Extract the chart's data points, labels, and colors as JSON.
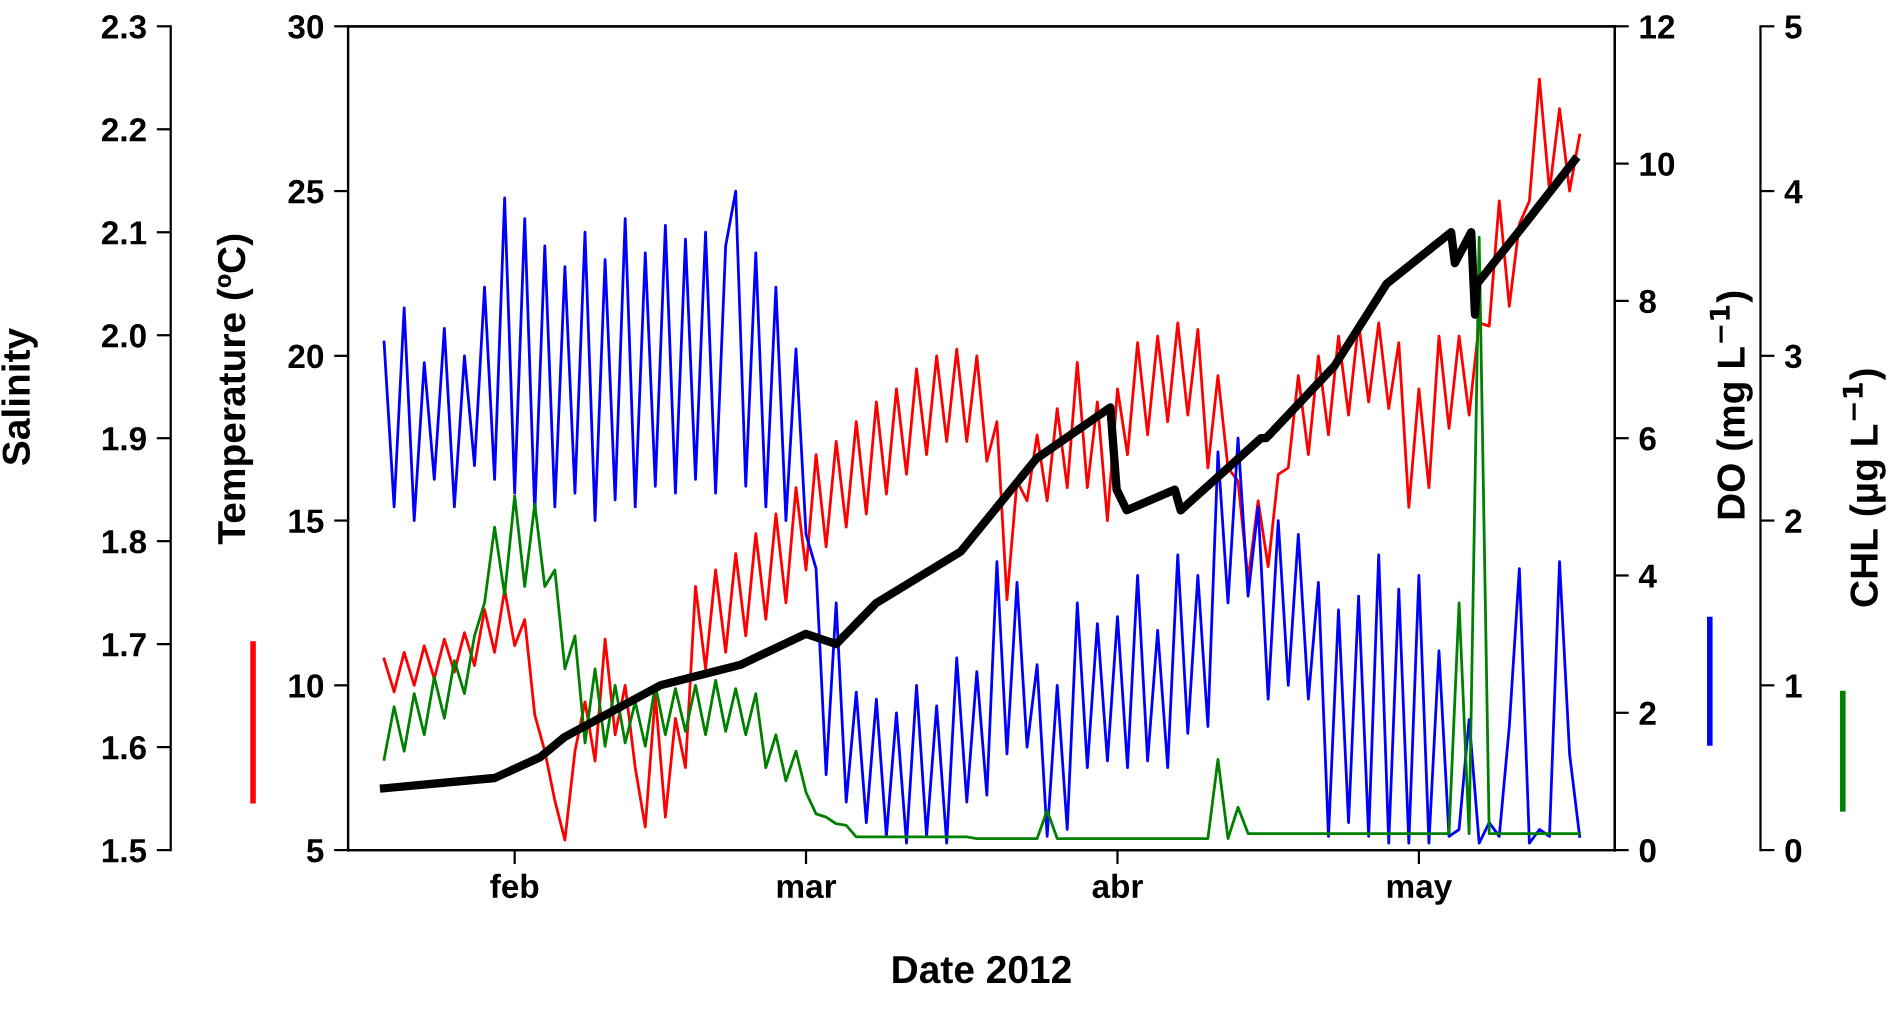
{
  "chart_data": [
    {
      "type": "line",
      "xlabel": "Date 2012",
      "ylabel": "Temperature (ºC)",
      "y2label": "DO (mg L$^{−1}$)",
      "y3label": "CHL (µg L$^{−1}$)",
      "x": [
        "2012-01-19",
        "2012-01-20",
        "2012-01-21",
        "2012-01-22",
        "2012-01-23",
        "2012-01-24",
        "2012-01-25",
        "2012-01-26",
        "2012-01-27",
        "2012-01-28",
        "2012-01-29",
        "2012-01-30",
        "2012-01-31",
        "2012-02-01",
        "2012-02-02",
        "2012-02-03",
        "2012-02-04",
        "2012-02-05",
        "2012-02-06",
        "2012-02-07",
        "2012-02-08",
        "2012-02-09",
        "2012-02-10",
        "2012-02-11",
        "2012-02-12",
        "2012-02-13",
        "2012-02-14",
        "2012-02-15",
        "2012-02-16",
        "2012-02-17",
        "2012-02-18",
        "2012-02-19",
        "2012-02-20",
        "2012-02-21",
        "2012-02-22",
        "2012-02-23",
        "2012-02-24",
        "2012-02-25",
        "2012-02-26",
        "2012-02-27",
        "2012-02-28",
        "2012-02-29",
        "2012-03-01",
        "2012-03-02",
        "2012-03-03",
        "2012-03-04",
        "2012-03-05",
        "2012-03-06",
        "2012-03-07",
        "2012-03-08",
        "2012-03-09",
        "2012-03-10",
        "2012-03-11",
        "2012-03-12",
        "2012-03-13",
        "2012-03-14",
        "2012-03-15",
        "2012-03-16",
        "2012-03-17",
        "2012-03-18",
        "2012-03-19",
        "2012-03-20",
        "2012-03-21",
        "2012-03-22",
        "2012-03-23",
        "2012-03-24",
        "2012-03-25",
        "2012-03-26",
        "2012-03-27",
        "2012-03-28",
        "2012-03-29",
        "2012-03-30",
        "2012-03-31",
        "2012-04-01",
        "2012-04-02",
        "2012-04-03",
        "2012-04-04",
        "2012-04-05",
        "2012-04-06",
        "2012-04-07",
        "2012-04-08",
        "2012-04-09",
        "2012-04-10",
        "2012-04-11",
        "2012-04-12",
        "2012-04-13",
        "2012-04-14",
        "2012-04-15",
        "2012-04-16",
        "2012-04-17",
        "2012-04-18",
        "2012-04-19",
        "2012-04-20",
        "2012-04-21",
        "2012-04-22",
        "2012-04-23",
        "2012-04-24",
        "2012-04-25",
        "2012-04-26",
        "2012-04-27",
        "2012-04-28",
        "2012-04-29",
        "2012-04-30",
        "2012-05-01",
        "2012-05-02",
        "2012-05-03",
        "2012-05-04",
        "2012-05-05",
        "2012-05-06",
        "2012-05-07",
        "2012-05-08",
        "2012-05-09",
        "2012-05-10",
        "2012-05-11",
        "2012-05-12",
        "2012-05-13",
        "2012-05-14",
        "2012-05-15",
        "2012-05-16",
        "2012-05-17"
      ],
      "series": [
        {
          "color": "#ff0000",
          "values": [
            10.8,
            9.8,
            11.0,
            10.0,
            11.2,
            10.2,
            11.4,
            10.4,
            11.6,
            10.6,
            12.3,
            11.0,
            12.9,
            11.2,
            12.0,
            9.1,
            8.0,
            6.5,
            5.3,
            8.0,
            9.5,
            7.7,
            11.4,
            8.5,
            10.0,
            7.5,
            5.7,
            9.7,
            6.0,
            9.0,
            7.5,
            13.0,
            10.5,
            13.5,
            11.0,
            14.0,
            11.5,
            14.6,
            12.0,
            15.2,
            12.5,
            16.0,
            13.5,
            17.0,
            14.2,
            17.4,
            14.8,
            18.0,
            15.2,
            18.6,
            15.8,
            19.0,
            16.4,
            19.6,
            17.0,
            20.0,
            17.4,
            20.2,
            17.4,
            20.0,
            16.8,
            18.0,
            12.6,
            16.2,
            15.6,
            17.6,
            15.6,
            18.4,
            16.0,
            19.8,
            16.0,
            18.6,
            15.0,
            19.0,
            17.0,
            20.4,
            17.6,
            20.6,
            18.0,
            21.0,
            18.2,
            20.8,
            16.6,
            19.4,
            16.6,
            16.2,
            13.2,
            15.6,
            13.6,
            16.4,
            16.6,
            19.4,
            17.0,
            20.0,
            17.6,
            20.6,
            18.2,
            21.0,
            18.6,
            21.0,
            18.4,
            20.4,
            15.4,
            19.0,
            16.0,
            20.6,
            17.8,
            20.6,
            18.2,
            21.0,
            20.9,
            24.7,
            21.5,
            24.0,
            24.7,
            28.4,
            25.0,
            27.5,
            25.0,
            26.7
          ]
        },
        {
          "color": "#0000ff",
          "axis": "y2",
          "values": [
            7.4,
            5.0,
            7.9,
            4.8,
            7.1,
            5.4,
            7.6,
            5.0,
            7.2,
            5.6,
            8.2,
            5.4,
            9.5,
            5.2,
            9.2,
            4.9,
            8.8,
            5.0,
            8.5,
            5.2,
            9.0,
            4.8,
            8.6,
            5.1,
            9.2,
            5.0,
            8.7,
            5.3,
            9.1,
            5.2,
            8.9,
            5.4,
            9.0,
            5.2,
            8.8,
            9.6,
            5.3,
            8.7,
            5.0,
            8.2,
            4.8,
            7.3,
            4.6,
            4.1,
            1.1,
            3.6,
            0.7,
            2.3,
            0.4,
            2.2,
            0.2,
            2.0,
            0.1,
            2.4,
            0.2,
            2.1,
            0.1,
            2.8,
            0.7,
            2.6,
            0.8,
            4.2,
            1.4,
            3.9,
            1.5,
            2.7,
            0.2,
            2.4,
            0.3,
            3.6,
            1.2,
            3.3,
            1.3,
            3.4,
            1.2,
            4.0,
            1.3,
            3.2,
            1.2,
            4.3,
            1.7,
            4.0,
            1.8,
            5.8,
            3.6,
            6.0,
            3.7,
            5.0,
            2.2,
            4.8,
            2.4,
            4.6,
            2.2,
            3.9,
            0.2,
            3.5,
            0.4,
            3.7,
            0.2,
            4.3,
            0.1,
            3.8,
            0.1,
            4.0,
            0.1,
            2.9,
            0.2,
            0.3,
            1.9,
            0.1,
            0.4,
            0.2,
            1.8,
            4.1,
            0.1,
            0.3,
            0.2,
            4.2,
            1.4,
            0.2
          ]
        },
        {
          "color": "#008000",
          "axis": "y3",
          "values": [
            0.55,
            0.87,
            0.6,
            0.95,
            0.7,
            1.05,
            0.8,
            1.15,
            0.95,
            1.3,
            1.5,
            1.96,
            1.55,
            2.15,
            1.6,
            2.1,
            1.6,
            1.7,
            1.1,
            1.3,
            0.65,
            1.1,
            0.63,
            1.0,
            0.65,
            0.9,
            0.63,
            1.0,
            0.7,
            0.98,
            0.72,
            1.0,
            0.7,
            1.03,
            0.72,
            0.98,
            0.7,
            0.95,
            0.5,
            0.7,
            0.42,
            0.6,
            0.35,
            0.22,
            0.2,
            0.16,
            0.15,
            0.08,
            0.08,
            0.08,
            0.08,
            0.08,
            0.08,
            0.08,
            0.08,
            0.08,
            0.08,
            0.08,
            0.08,
            0.07,
            0.07,
            0.07,
            0.07,
            0.07,
            0.07,
            0.07,
            0.24,
            0.07,
            0.07,
            0.07,
            0.07,
            0.07,
            0.07,
            0.07,
            0.07,
            0.07,
            0.07,
            0.07,
            0.07,
            0.07,
            0.07,
            0.07,
            0.07,
            0.55,
            0.07,
            0.26,
            0.1,
            0.1,
            0.1,
            0.1,
            0.1,
            0.1,
            0.1,
            0.1,
            0.1,
            0.1,
            0.1,
            0.1,
            0.1,
            0.1,
            0.1,
            0.1,
            0.1,
            0.1,
            0.1,
            0.1,
            0.1,
            1.5,
            0.1,
            3.72,
            0.1,
            0.1,
            0.1,
            0.1,
            0.1,
            0.1,
            0.1,
            0.1,
            0.1,
            0.1
          ]
        }
      ],
      "xlim": [
        "2012-01-15T10:00",
        "2012-05-20T12:00"
      ],
      "xticks": [
        {
          "value": "2012-02-01",
          "label": "feb"
        },
        {
          "value": "2012-03-01",
          "label": "mar"
        },
        {
          "value": "2012-04-01",
          "label": "abr"
        },
        {
          "value": "2012-05-01",
          "label": "may"
        }
      ],
      "ylim": [
        5,
        30
      ],
      "yticks": [
        5,
        10,
        15,
        20,
        25,
        30
      ],
      "y2lim": [
        0,
        12
      ],
      "y2ticks": [
        0,
        2,
        4,
        6,
        8,
        10,
        12
      ],
      "y3lim": [
        0,
        5
      ],
      "y3ticks": [
        0,
        1,
        2,
        3,
        4,
        5
      ],
      "line_style": "solid",
      "marker": "none",
      "grid": false,
      "legend": false
    },
    {
      "type": "line",
      "ylabel": "Salinity",
      "series": [
        {
          "color": "#000000",
          "x": [
            "2012-01-19",
            "2012-01-30",
            "2012-02-03T12:00",
            "2012-02-06",
            "2012-02-15T12:00",
            "2012-02-23T12:00",
            "2012-03-01",
            "2012-03-04",
            "2012-03-08",
            "2012-03-16T10:00",
            "2012-03-23T22:00",
            "2012-03-31T07:00",
            "2012-03-31T22:00",
            "2012-04-01T22:00",
            "2012-04-06T17:00",
            "2012-04-07T07:00",
            "2012-04-15T07:00",
            "2012-04-15T19:00",
            "2012-04-22T14:00",
            "2012-04-27T19:00",
            "2012-05-04T05:00",
            "2012-05-04T14:00",
            "2012-05-06T05:00",
            "2012-05-06T14:00",
            "2012-05-06T19:00",
            "2012-05-11T17:00",
            "2012-05-16T12:00"
          ],
          "values": [
            1.56,
            1.57,
            1.59,
            1.61,
            1.66,
            1.68,
            1.71,
            1.7,
            1.74,
            1.79,
            1.88,
            1.93,
            1.85,
            1.83,
            1.85,
            1.83,
            1.9,
            1.9,
            1.97,
            2.05,
            2.1,
            2.07,
            2.1,
            2.02,
            2.05,
            2.11,
            2.17
          ]
        }
      ],
      "xlim": [
        "2012-01-15T10:00",
        "2012-05-20T12:00"
      ],
      "ylim": [
        1.5,
        2.3
      ],
      "yticks": [
        1.5,
        1.6,
        1.7,
        1.8,
        1.9,
        {
          "value": 2.0,
          "label": "2.0"
        },
        2.1,
        2.2,
        2.3
      ],
      "tick_labels": "y",
      "line_style": "solid",
      "marker": "none",
      "grid": false,
      "legend": false
    }
  ]
}
